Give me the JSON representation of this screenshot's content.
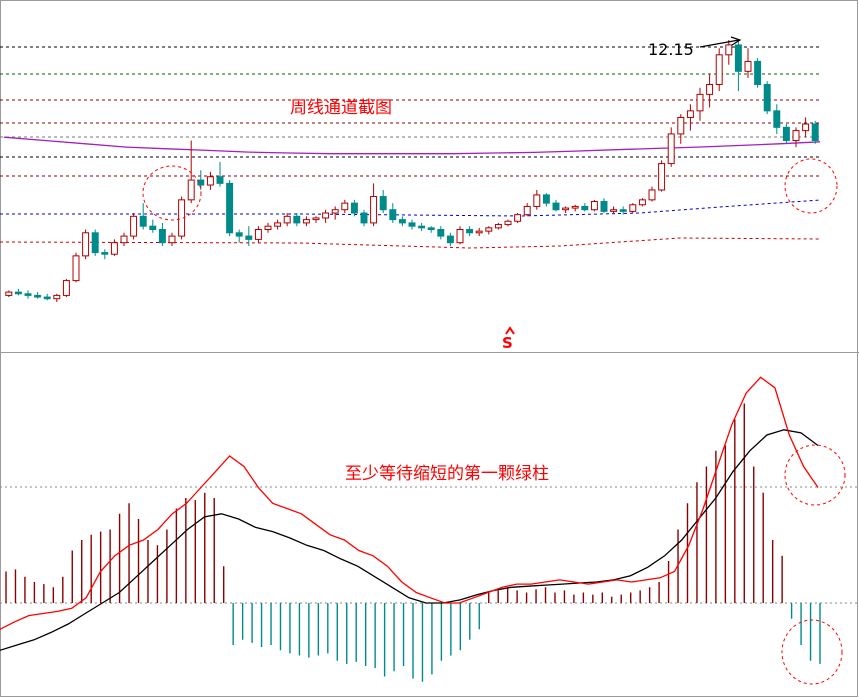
{
  "chart_data": [
    {
      "type": "candlestick",
      "panel": "price",
      "annotations": {
        "title": "周线通道截图",
        "peak_label": "12.15",
        "signal_marker": "S"
      },
      "colors": {
        "up": "#b00000",
        "down": "#008b8b",
        "channel_lines": [
          "#000000",
          "#006400",
          "#8b0000",
          "#8b0000",
          "#777777",
          "#000000",
          "#8b0000",
          "#0000cc",
          "#cc0000"
        ],
        "ma_line": "#a020c0",
        "annotation": "#ff0000"
      },
      "grid": false,
      "ohlc": [
        [
          4.4,
          4.55,
          4.35,
          4.5
        ],
        [
          4.5,
          4.6,
          4.4,
          4.45
        ],
        [
          4.45,
          4.55,
          4.3,
          4.4
        ],
        [
          4.4,
          4.5,
          4.3,
          4.35
        ],
        [
          4.35,
          4.45,
          4.25,
          4.3
        ],
        [
          4.3,
          4.45,
          4.2,
          4.4
        ],
        [
          4.4,
          4.9,
          4.35,
          4.85
        ],
        [
          4.85,
          5.7,
          4.8,
          5.6
        ],
        [
          5.6,
          6.4,
          5.5,
          6.3
        ],
        [
          6.3,
          6.4,
          5.6,
          5.7
        ],
        [
          5.7,
          5.8,
          5.5,
          5.65
        ],
        [
          5.65,
          6.1,
          5.6,
          6.0
        ],
        [
          6.0,
          6.3,
          5.9,
          6.2
        ],
        [
          6.2,
          6.9,
          6.1,
          6.8
        ],
        [
          6.8,
          7.2,
          6.4,
          6.5
        ],
        [
          6.5,
          6.7,
          6.3,
          6.4
        ],
        [
          6.4,
          6.6,
          5.9,
          6.0
        ],
        [
          6.0,
          6.3,
          5.9,
          6.2
        ],
        [
          6.2,
          7.4,
          6.1,
          7.3
        ],
        [
          7.3,
          9.1,
          7.2,
          7.9
        ],
        [
          7.9,
          8.2,
          7.6,
          7.75
        ],
        [
          7.75,
          8.15,
          7.6,
          8.0
        ],
        [
          8.0,
          8.45,
          7.7,
          7.8
        ],
        [
          7.8,
          7.9,
          6.2,
          6.3
        ],
        [
          6.3,
          6.4,
          6.0,
          6.2
        ],
        [
          6.2,
          6.5,
          5.9,
          6.1
        ],
        [
          6.1,
          6.5,
          6.0,
          6.4
        ],
        [
          6.4,
          6.6,
          6.3,
          6.5
        ],
        [
          6.5,
          6.7,
          6.4,
          6.6
        ],
        [
          6.6,
          6.9,
          6.5,
          6.8
        ],
        [
          6.8,
          6.9,
          6.5,
          6.6
        ],
        [
          6.6,
          6.8,
          6.5,
          6.7
        ],
        [
          6.7,
          6.8,
          6.6,
          6.75
        ],
        [
          6.75,
          7.0,
          6.6,
          6.9
        ],
        [
          6.9,
          7.1,
          6.7,
          7.0
        ],
        [
          7.0,
          7.3,
          6.9,
          7.2
        ],
        [
          7.2,
          7.3,
          6.8,
          6.9
        ],
        [
          6.9,
          7.0,
          6.5,
          6.6
        ],
        [
          6.6,
          7.8,
          6.5,
          7.4
        ],
        [
          7.4,
          7.6,
          6.9,
          7.0
        ],
        [
          7.0,
          7.2,
          6.6,
          6.7
        ],
        [
          6.7,
          6.8,
          6.5,
          6.6
        ],
        [
          6.6,
          6.7,
          6.4,
          6.5
        ],
        [
          6.5,
          6.6,
          6.35,
          6.45
        ],
        [
          6.45,
          6.5,
          6.3,
          6.4
        ],
        [
          6.4,
          6.5,
          6.1,
          6.2
        ],
        [
          6.2,
          6.3,
          5.9,
          6.0
        ],
        [
          6.0,
          6.5,
          5.95,
          6.4
        ],
        [
          6.4,
          6.5,
          6.2,
          6.3
        ],
        [
          6.3,
          6.45,
          6.2,
          6.35
        ],
        [
          6.35,
          6.5,
          6.25,
          6.45
        ],
        [
          6.45,
          6.6,
          6.4,
          6.55
        ],
        [
          6.55,
          6.7,
          6.5,
          6.65
        ],
        [
          6.65,
          6.9,
          6.6,
          6.85
        ],
        [
          6.85,
          7.2,
          6.8,
          7.1
        ],
        [
          7.1,
          7.6,
          7.0,
          7.45
        ],
        [
          7.45,
          7.5,
          7.1,
          7.2
        ],
        [
          7.2,
          7.3,
          6.95,
          7.0
        ],
        [
          7.0,
          7.1,
          6.9,
          7.05
        ],
        [
          7.05,
          7.15,
          6.95,
          7.1
        ],
        [
          7.1,
          7.2,
          6.95,
          7.0
        ],
        [
          7.0,
          7.3,
          6.95,
          7.25
        ],
        [
          7.25,
          7.35,
          6.9,
          6.95
        ],
        [
          6.95,
          7.1,
          6.9,
          7.0
        ],
        [
          7.0,
          7.1,
          6.85,
          6.95
        ],
        [
          6.95,
          7.2,
          6.9,
          7.15
        ],
        [
          7.15,
          7.35,
          7.1,
          7.3
        ],
        [
          7.3,
          7.7,
          7.25,
          7.6
        ],
        [
          7.6,
          8.5,
          7.55,
          8.4
        ],
        [
          8.4,
          9.5,
          8.3,
          9.3
        ],
        [
          9.3,
          9.9,
          9.0,
          9.8
        ],
        [
          9.8,
          10.2,
          9.4,
          10.0
        ],
        [
          10.0,
          10.7,
          9.7,
          10.5
        ],
        [
          10.5,
          11.1,
          10.1,
          10.8
        ],
        [
          10.8,
          11.9,
          10.6,
          11.7
        ],
        [
          11.7,
          12.15,
          11.4,
          12.0
        ],
        [
          12.0,
          12.1,
          10.6,
          11.2
        ],
        [
          11.2,
          11.9,
          11.0,
          11.5
        ],
        [
          11.5,
          11.6,
          10.7,
          10.8
        ],
        [
          10.8,
          10.9,
          9.9,
          10.0
        ],
        [
          10.0,
          10.2,
          9.3,
          9.5
        ],
        [
          9.5,
          9.6,
          9.0,
          9.1
        ],
        [
          9.1,
          9.5,
          8.9,
          9.4
        ],
        [
          9.4,
          9.8,
          9.2,
          9.6
        ],
        [
          9.6,
          9.7,
          9.0,
          9.1
        ]
      ],
      "ma_line": [
        9.2,
        9.1,
        9.0,
        8.9,
        8.85,
        8.8,
        8.75,
        8.72,
        8.7,
        8.7,
        8.7,
        8.7,
        8.72,
        8.74,
        8.78,
        8.82,
        8.86,
        8.9,
        8.95,
        9.0,
        9.06
      ]
    },
    {
      "type": "macd",
      "panel": "indicator",
      "annotations": {
        "title": "至少等待缩短的第一颗绿柱"
      },
      "colors": {
        "dif": "#ff0000",
        "dea": "#000000",
        "positive_bar": "#8b0000",
        "negative_bar": "#008b8b",
        "annotation": "#ff0000"
      },
      "grid": false,
      "histogram": [
        0.3,
        0.32,
        0.25,
        0.2,
        0.18,
        0.15,
        0.25,
        0.5,
        0.6,
        0.65,
        0.68,
        0.7,
        0.85,
        0.95,
        0.8,
        0.6,
        0.55,
        0.7,
        0.9,
        1.0,
        0.98,
        1.05,
        1.0,
        0.35,
        -0.4,
        -0.35,
        -0.38,
        -0.42,
        -0.4,
        -0.45,
        -0.48,
        -0.5,
        -0.52,
        -0.5,
        -0.48,
        -0.55,
        -0.58,
        -0.56,
        -0.6,
        -0.62,
        -0.7,
        -0.65,
        -0.6,
        -0.72,
        -0.75,
        -0.68,
        -0.55,
        -0.5,
        -0.45,
        -0.35,
        -0.25,
        0.1,
        0.12,
        0.15,
        0.12,
        0.1,
        0.13,
        0.15,
        0.1,
        0.12,
        0.08,
        0.1,
        0.08,
        0.1,
        0.06,
        0.08,
        0.1,
        0.12,
        0.15,
        0.2,
        0.4,
        0.7,
        0.95,
        1.15,
        1.3,
        1.45,
        1.5,
        1.75,
        1.9,
        1.3,
        1.05,
        0.6,
        0.45,
        -0.15,
        -0.4,
        -0.55,
        -0.58
      ],
      "dif": [
        -0.25,
        -0.18,
        -0.12,
        -0.1,
        -0.08,
        -0.05,
        0.05,
        0.3,
        0.45,
        0.55,
        0.6,
        0.7,
        0.85,
        0.95,
        1.1,
        1.25,
        1.4,
        1.3,
        1.1,
        0.95,
        0.9,
        0.85,
        0.75,
        0.65,
        0.6,
        0.5,
        0.45,
        0.35,
        0.2,
        0.1,
        0.05,
        0.0,
        0.0,
        0.05,
        0.1,
        0.15,
        0.18,
        0.18,
        0.2,
        0.22,
        0.2,
        0.18,
        0.2,
        0.22,
        0.2,
        0.22,
        0.24,
        0.3,
        0.55,
        0.9,
        1.3,
        1.7,
        2.0,
        2.15,
        2.05,
        1.6,
        1.3,
        1.1
      ],
      "dea": [
        -0.45,
        -0.4,
        -0.35,
        -0.28,
        -0.2,
        -0.1,
        0.0,
        0.1,
        0.25,
        0.4,
        0.55,
        0.7,
        0.82,
        0.85,
        0.8,
        0.72,
        0.68,
        0.62,
        0.55,
        0.5,
        0.42,
        0.35,
        0.25,
        0.15,
        0.05,
        0.0,
        0.0,
        0.03,
        0.08,
        0.12,
        0.15,
        0.16,
        0.17,
        0.18,
        0.19,
        0.2,
        0.22,
        0.26,
        0.34,
        0.45,
        0.6,
        0.8,
        1.0,
        1.25,
        1.45,
        1.6,
        1.65,
        1.62,
        1.5
      ]
    }
  ]
}
